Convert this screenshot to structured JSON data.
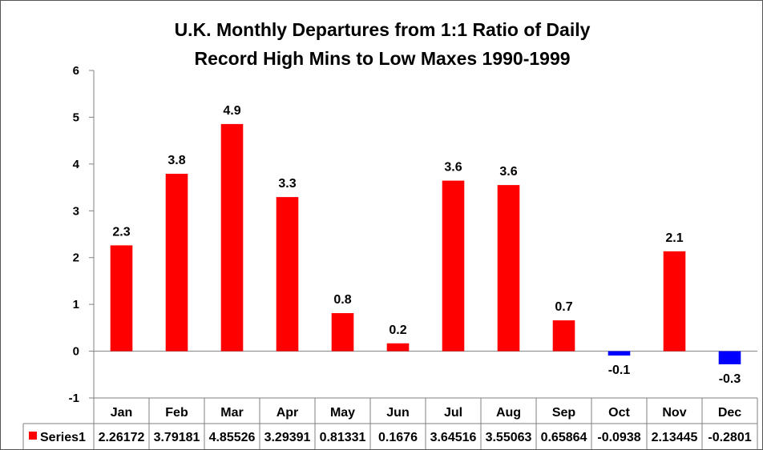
{
  "chart_data": {
    "type": "bar",
    "title": "U.K. Monthly Departures from 1:1 Ratio of Daily",
    "subtitle": "Record High Mins to Low Maxes 1990-1999",
    "categories": [
      "Jan",
      "Feb",
      "Mar",
      "Apr",
      "May",
      "Jun",
      "Jul",
      "Aug",
      "Sep",
      "Oct",
      "Nov",
      "Dec"
    ],
    "series": [
      {
        "name": "Series1",
        "values": [
          2.26172,
          3.79181,
          4.85526,
          3.29391,
          0.81331,
          0.1676,
          3.64516,
          3.55063,
          0.65864,
          -0.0938,
          2.13445,
          -0.2801
        ],
        "table_labels": [
          "2.26172",
          "3.79181",
          "4.85526",
          "3.29391",
          "0.81331",
          "0.1676",
          "3.64516",
          "3.55063",
          "0.65864",
          "-0.0938",
          "2.13445",
          "-0.2801"
        ],
        "data_labels": [
          "2.3",
          "3.8",
          "4.9",
          "3.3",
          "0.8",
          "0.2",
          "3.6",
          "3.6",
          "0.7",
          "-0.1",
          "2.1",
          "-0.3"
        ]
      }
    ],
    "ylim": [
      -1,
      6
    ],
    "yticks": [
      "-1",
      "0",
      "1",
      "2",
      "3",
      "4",
      "5",
      "6"
    ],
    "grid": false,
    "legend": "data-table",
    "colors": {
      "positive": "#ff0000",
      "negative": "#0000ff",
      "legend_key": "#ff0000"
    }
  }
}
